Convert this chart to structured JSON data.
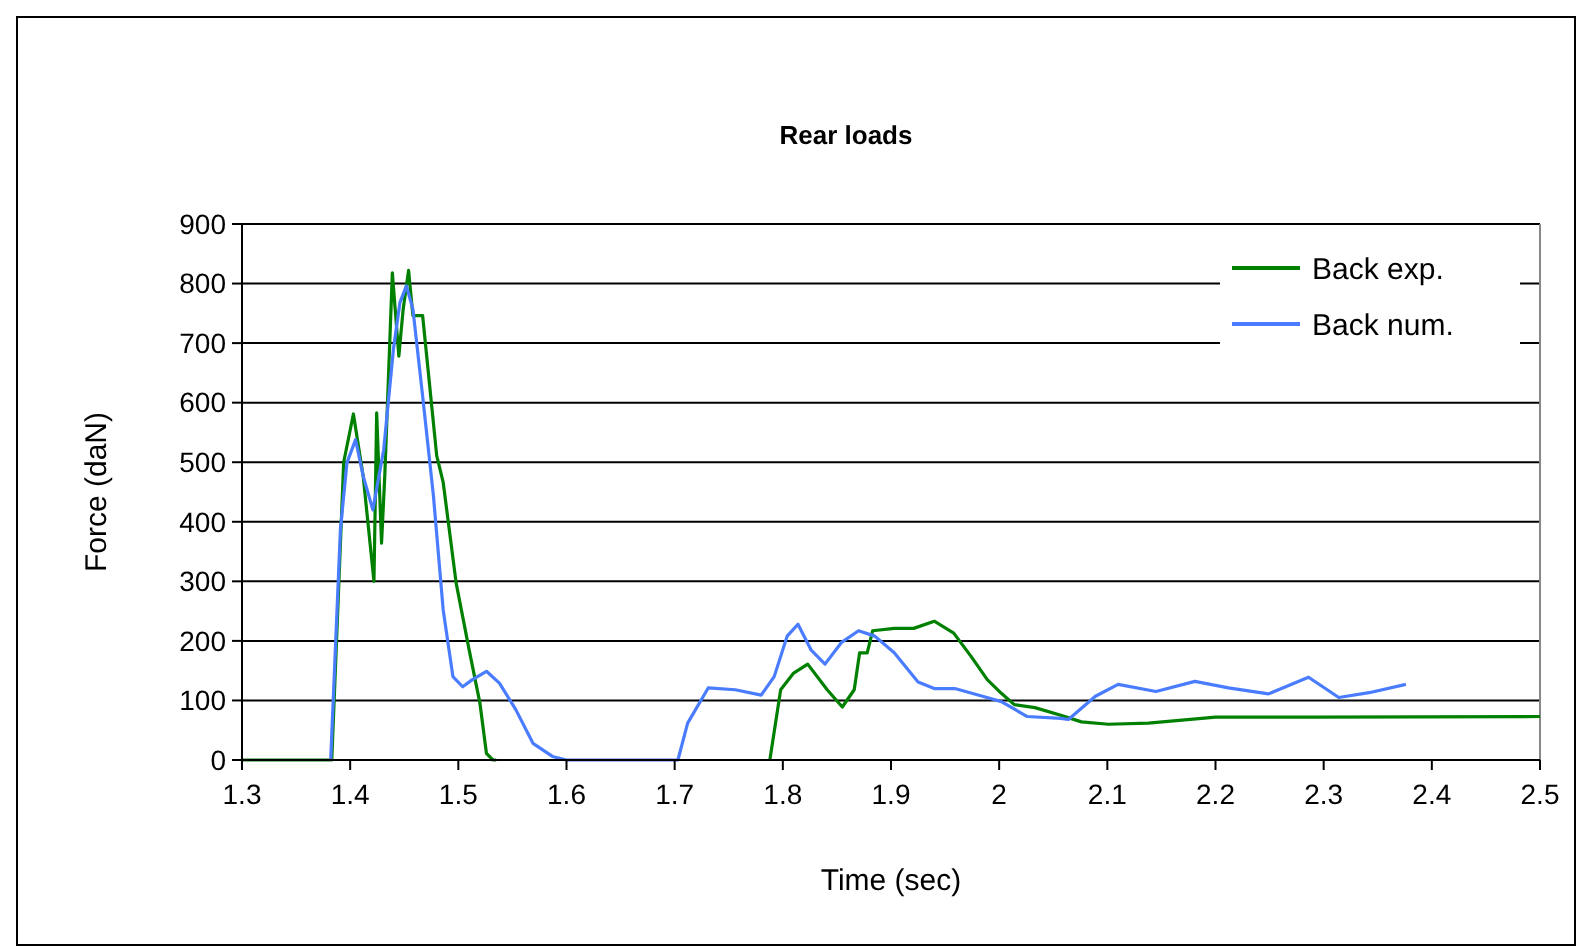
{
  "chart_data": {
    "type": "line",
    "title": "Rear loads",
    "xlabel": "Time (sec)",
    "ylabel": "Force (daN)",
    "xlim": [
      1.3,
      2.5
    ],
    "xticks": [
      1.3,
      1.4,
      1.5,
      1.6,
      1.7,
      1.8,
      1.9,
      2,
      2.1,
      2.2,
      2.3,
      2.4,
      2.5
    ],
    "ylim": [
      0,
      900
    ],
    "yticks": [
      0,
      100,
      200,
      300,
      400,
      500,
      600,
      700,
      800,
      900
    ],
    "grid": "y",
    "legend": "top right",
    "line_style": "solid",
    "series": [
      {
        "name": "Back exp.",
        "color": "#008000",
        "x": [
          1.3,
          1.383,
          1.394,
          1.403,
          1.412,
          1.422,
          1.4245,
          1.429,
          1.432,
          1.439,
          1.445,
          1.449,
          1.454,
          1.458,
          1.467,
          1.48,
          1.486,
          1.498,
          1.51,
          1.52,
          1.526,
          1.532,
          1.535,
          1.7,
          1.788,
          1.798,
          1.81,
          1.823,
          1.841,
          1.855,
          1.866,
          1.871,
          1.878,
          1.883,
          1.903,
          1.921,
          1.94,
          1.958,
          1.974,
          1.989,
          2.002,
          2.014,
          2.033,
          2.057,
          2.076,
          2.101,
          2.138,
          2.2,
          2.293,
          2.5
        ],
        "values": [
          0,
          0,
          500,
          581,
          477,
          300,
          583,
          364,
          477,
          818,
          678,
          757,
          822,
          746,
          746,
          511,
          466,
          297,
          185,
          95,
          11,
          0,
          0,
          null,
          0,
          118,
          146,
          161,
          118,
          89,
          118,
          180,
          180,
          217,
          221,
          221,
          233,
          213,
          174,
          135,
          112,
          93,
          88,
          75,
          64,
          60,
          62,
          72,
          72,
          73
        ]
      },
      {
        "name": "Back num.",
        "color": "#4a7cff",
        "x": [
          1.382,
          1.391,
          1.397,
          1.405,
          1.412,
          1.421,
          1.431,
          1.44,
          1.446,
          1.452,
          1.458,
          1.467,
          1.477,
          1.486,
          1.495,
          1.504,
          1.513,
          1.526,
          1.538,
          1.553,
          1.569,
          1.587,
          1.6,
          1.703,
          1.712,
          1.731,
          1.756,
          1.78,
          1.792,
          1.804,
          1.814,
          1.826,
          1.839,
          1.854,
          1.87,
          1.885,
          1.903,
          1.925,
          1.94,
          1.959,
          1.983,
          2.002,
          2.026,
          2.057,
          2.064,
          2.089,
          2.11,
          2.145,
          2.181,
          2.212,
          2.249,
          2.286,
          2.314,
          2.342,
          2.376
        ],
        "values": [
          0,
          387,
          499,
          538,
          477,
          420,
          521,
          690,
          768,
          796,
          757,
          611,
          443,
          252,
          140,
          123,
          135,
          149,
          129,
          85,
          28,
          6,
          0,
          0,
          62,
          121,
          118,
          109,
          140,
          208,
          228,
          185,
          161,
          197,
          217,
          208,
          180,
          131,
          120,
          120,
          108,
          98,
          73,
          70,
          68,
          107,
          127,
          115,
          132,
          121,
          111,
          139,
          105,
          113,
          127
        ]
      }
    ]
  }
}
